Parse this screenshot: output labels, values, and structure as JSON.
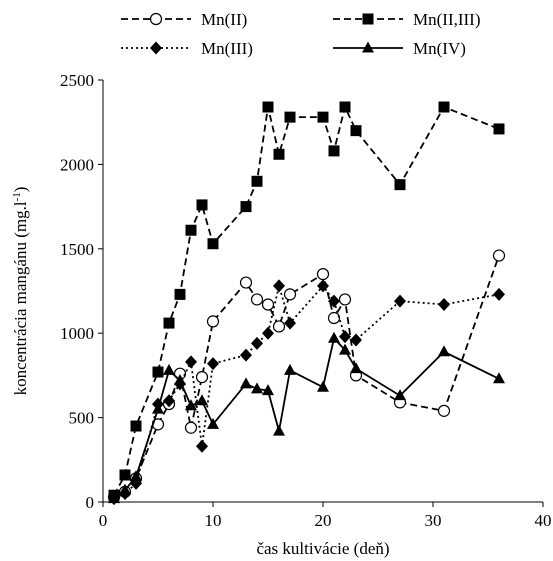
{
  "chart_data": {
    "type": "line",
    "title": "",
    "xlabel": "čas kultivácie (deň)",
    "ylabel": "koncentrácia mangánu (mg.l",
    "ylabel_sup": "-1",
    "ylabel_end": ")",
    "xlim": [
      0,
      40
    ],
    "ylim": [
      0,
      2500
    ],
    "xticks": [
      0,
      10,
      20,
      30,
      40
    ],
    "yticks": [
      0,
      500,
      1000,
      1500,
      2000,
      2500
    ],
    "grid": false,
    "legend_position": "top",
    "series": [
      {
        "name": "Mn(II)",
        "line_style": "dashed",
        "marker": "open-circle",
        "x": [
          1,
          2,
          3,
          5,
          6,
          7,
          8,
          9,
          10,
          13,
          14,
          15,
          16,
          17,
          20,
          21,
          22,
          23,
          27,
          31,
          36
        ],
        "y": [
          30,
          60,
          140,
          460,
          580,
          760,
          440,
          740,
          1070,
          1300,
          1200,
          1170,
          1040,
          1230,
          1350,
          1090,
          1200,
          750,
          590,
          540,
          1460
        ]
      },
      {
        "name": "Mn(II,III)",
        "line_style": "dashed",
        "marker": "filled-square",
        "x": [
          1,
          2,
          3,
          5,
          6,
          7,
          8,
          9,
          10,
          13,
          14,
          15,
          16,
          17,
          20,
          21,
          22,
          23,
          27,
          31,
          36
        ],
        "y": [
          40,
          160,
          450,
          770,
          1060,
          1230,
          1610,
          1760,
          1530,
          1750,
          1900,
          2340,
          2060,
          2280,
          2280,
          2080,
          2340,
          2200,
          1880,
          2340,
          2210
        ]
      },
      {
        "name": "Mn(III)",
        "line_style": "dotted",
        "marker": "filled-diamond",
        "x": [
          1,
          2,
          3,
          5,
          6,
          7,
          8,
          9,
          10,
          13,
          14,
          15,
          16,
          17,
          20,
          21,
          22,
          23,
          27,
          31,
          36
        ],
        "y": [
          20,
          50,
          110,
          580,
          600,
          700,
          830,
          330,
          820,
          870,
          940,
          1000,
          1280,
          1060,
          1280,
          1190,
          980,
          960,
          1190,
          1170,
          1230
        ]
      },
      {
        "name": "Mn(IV)",
        "line_style": "solid",
        "marker": "filled-triangle",
        "x": [
          1,
          2,
          3,
          5,
          6,
          7,
          8,
          9,
          10,
          13,
          14,
          15,
          16,
          17,
          20,
          21,
          22,
          23,
          27,
          31,
          36
        ],
        "y": [
          20,
          70,
          150,
          550,
          780,
          720,
          570,
          600,
          460,
          700,
          670,
          660,
          420,
          780,
          680,
          970,
          900,
          790,
          630,
          890,
          730
        ]
      }
    ]
  }
}
